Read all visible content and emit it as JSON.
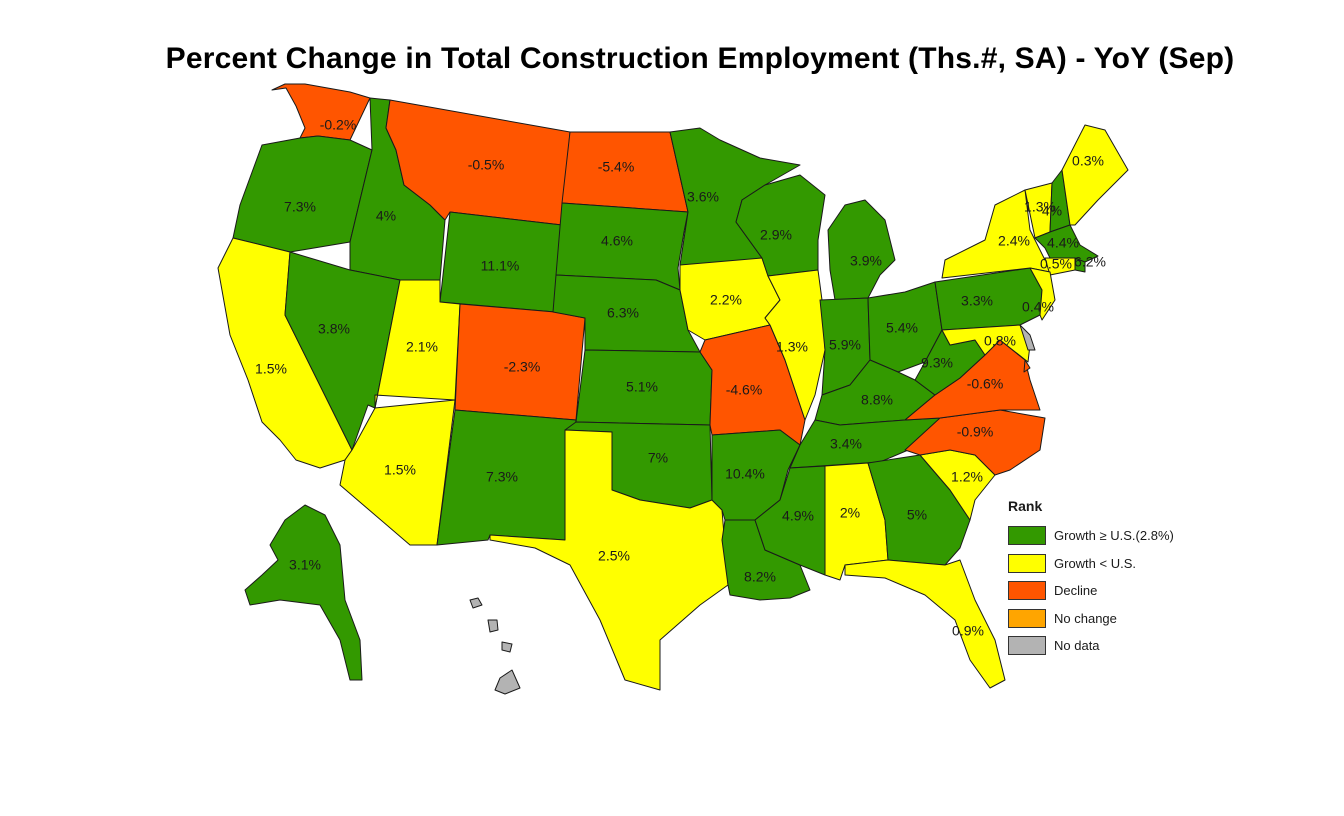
{
  "title": "Percent Change in Total Construction Employment (Ths.#, SA) - YoY (Sep)",
  "colors": {
    "growth_ge_us": "#339900",
    "growth_lt_us": "#ffff00",
    "decline": "#ff5500",
    "no_change": "#ffa500",
    "no_data": "#b3b3b3"
  },
  "legend": {
    "title": "Rank",
    "items": [
      {
        "key": "growth_ge_us",
        "label": "Growth ≥ U.S.(2.8%)"
      },
      {
        "key": "growth_lt_us",
        "label": "Growth < U.S."
      },
      {
        "key": "decline",
        "label": "Decline"
      },
      {
        "key": "no_change",
        "label": "No change"
      },
      {
        "key": "no_data",
        "label": "No data"
      }
    ]
  },
  "states": [
    {
      "id": "WA",
      "value": "-0.2%",
      "rank": "decline"
    },
    {
      "id": "OR",
      "value": "7.3%",
      "rank": "growth_ge_us"
    },
    {
      "id": "CA",
      "value": "1.5%",
      "rank": "growth_lt_us"
    },
    {
      "id": "ID",
      "value": "4%",
      "rank": "growth_ge_us"
    },
    {
      "id": "NV",
      "value": "3.8%",
      "rank": "growth_ge_us"
    },
    {
      "id": "MT",
      "value": "-0.5%",
      "rank": "decline"
    },
    {
      "id": "WY",
      "value": "11.1%",
      "rank": "growth_ge_us"
    },
    {
      "id": "UT",
      "value": "2.1%",
      "rank": "growth_lt_us"
    },
    {
      "id": "AZ",
      "value": "1.5%",
      "rank": "growth_lt_us"
    },
    {
      "id": "CO",
      "value": "-2.3%",
      "rank": "decline"
    },
    {
      "id": "NM",
      "value": "7.3%",
      "rank": "growth_ge_us"
    },
    {
      "id": "ND",
      "value": "-5.4%",
      "rank": "decline"
    },
    {
      "id": "SD",
      "value": "4.6%",
      "rank": "growth_ge_us"
    },
    {
      "id": "NE",
      "value": "6.3%",
      "rank": "growth_ge_us"
    },
    {
      "id": "KS",
      "value": "5.1%",
      "rank": "growth_ge_us"
    },
    {
      "id": "OK",
      "value": "7%",
      "rank": "growth_ge_us"
    },
    {
      "id": "TX",
      "value": "2.5%",
      "rank": "growth_lt_us"
    },
    {
      "id": "MN",
      "value": "3.6%",
      "rank": "growth_ge_us"
    },
    {
      "id": "IA",
      "value": "2.2%",
      "rank": "growth_lt_us"
    },
    {
      "id": "MO",
      "value": "-4.6%",
      "rank": "decline"
    },
    {
      "id": "AR",
      "value": "10.4%",
      "rank": "growth_ge_us"
    },
    {
      "id": "LA",
      "value": "8.2%",
      "rank": "growth_ge_us"
    },
    {
      "id": "WI",
      "value": "2.9%",
      "rank": "growth_ge_us"
    },
    {
      "id": "IL",
      "value": "1.3%",
      "rank": "growth_lt_us"
    },
    {
      "id": "MI",
      "value": "3.9%",
      "rank": "growth_ge_us"
    },
    {
      "id": "IN",
      "value": "5.9%",
      "rank": "growth_ge_us"
    },
    {
      "id": "OH",
      "value": "5.4%",
      "rank": "growth_ge_us"
    },
    {
      "id": "KY",
      "value": "8.8%",
      "rank": "growth_ge_us"
    },
    {
      "id": "TN",
      "value": "3.4%",
      "rank": "growth_ge_us"
    },
    {
      "id": "MS",
      "value": "4.9%",
      "rank": "growth_ge_us"
    },
    {
      "id": "AL",
      "value": "2%",
      "rank": "growth_lt_us"
    },
    {
      "id": "GA",
      "value": "5%",
      "rank": "growth_ge_us"
    },
    {
      "id": "FL",
      "value": "0.9%",
      "rank": "growth_lt_us"
    },
    {
      "id": "SC",
      "value": "1.2%",
      "rank": "growth_lt_us"
    },
    {
      "id": "NC",
      "value": "-0.9%",
      "rank": "decline"
    },
    {
      "id": "VA",
      "value": "-0.6%",
      "rank": "decline"
    },
    {
      "id": "WV",
      "value": "9.3%",
      "rank": "growth_ge_us"
    },
    {
      "id": "PA",
      "value": "3.3%",
      "rank": "growth_ge_us"
    },
    {
      "id": "NY",
      "value": "2.4%",
      "rank": "growth_lt_us"
    },
    {
      "id": "VT",
      "value": "1.3%",
      "rank": "growth_lt_us"
    },
    {
      "id": "NH",
      "value": "4%",
      "rank": "growth_ge_us"
    },
    {
      "id": "ME",
      "value": "0.3%",
      "rank": "growth_lt_us"
    },
    {
      "id": "MA",
      "value": "4.4%",
      "rank": "growth_ge_us"
    },
    {
      "id": "CT",
      "value": "0.5%",
      "rank": "growth_lt_us"
    },
    {
      "id": "RI",
      "value": "6.2%",
      "rank": "growth_ge_us"
    },
    {
      "id": "NJ",
      "value": "0.4%",
      "rank": "growth_lt_us"
    },
    {
      "id": "MD",
      "value": "0.8%",
      "rank": "growth_lt_us"
    },
    {
      "id": "DE",
      "value": "",
      "rank": "no_data"
    },
    {
      "id": "DC",
      "value": "",
      "rank": "decline"
    },
    {
      "id": "AK",
      "value": "3.1%",
      "rank": "growth_ge_us"
    },
    {
      "id": "HI",
      "value": "",
      "rank": "no_data"
    }
  ]
}
